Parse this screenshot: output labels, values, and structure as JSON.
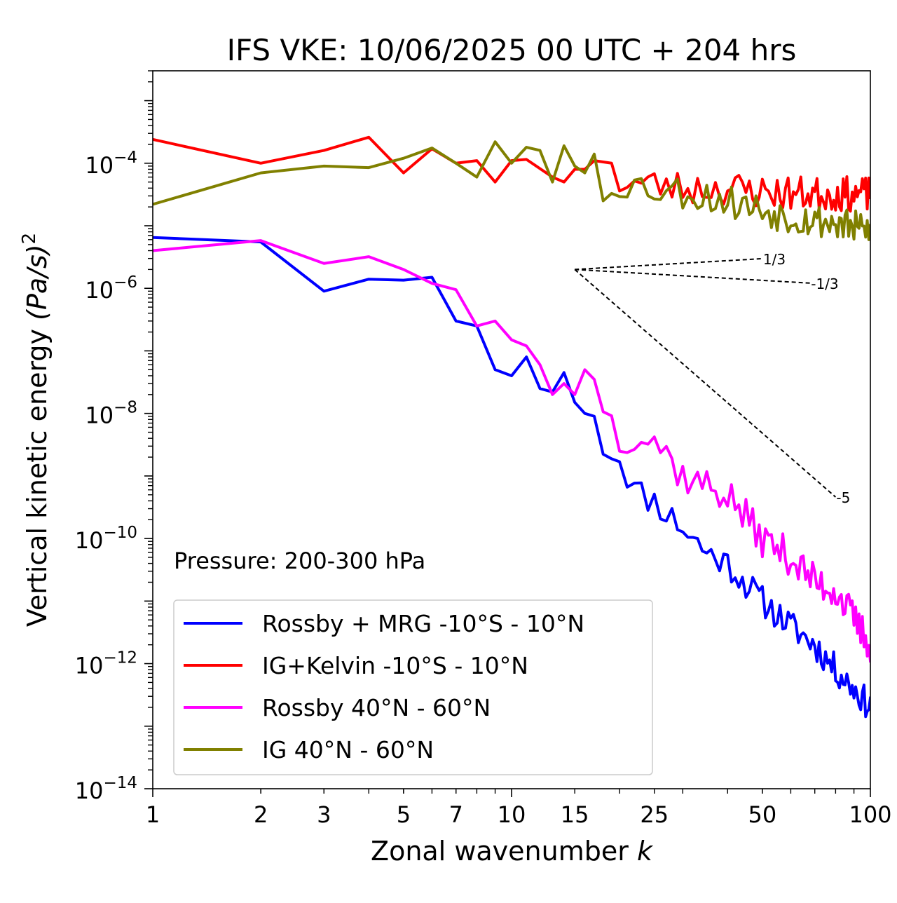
{
  "chart_data": {
    "type": "line",
    "title": "IFS VKE: 10/06/2025 00 UTC + 204 hrs",
    "xlabel": "Zonal wavenumber",
    "xlabel_var": "k",
    "ylabel": "Vertical kinetic energy",
    "ylabel_unit": "(Pa/s)",
    "ylabel_exp": "2",
    "xscale": "log",
    "yscale": "log",
    "xlim": [
      1,
      100
    ],
    "ylim": [
      1e-14,
      0.003
    ],
    "x_ticks": [
      1,
      2,
      3,
      5,
      7,
      10,
      15,
      25,
      50,
      100
    ],
    "x_tick_labels": [
      "1",
      "2",
      "3",
      "5",
      "7",
      "10",
      "15",
      "25",
      "50",
      "100"
    ],
    "y_ticks": [
      1e-14,
      1e-12,
      1e-10,
      1e-08,
      1e-06,
      0.0001
    ],
    "y_tick_labels": [
      {
        "base": "10",
        "exp": "−14"
      },
      {
        "base": "10",
        "exp": "−12"
      },
      {
        "base": "10",
        "exp": "−10"
      },
      {
        "base": "10",
        "exp": "−8"
      },
      {
        "base": "10",
        "exp": "−6"
      },
      {
        "base": "10",
        "exp": "−4"
      }
    ],
    "annotation": "Pressure: 200-300 hPa",
    "legend_position": "lower-left",
    "grid": false,
    "series": [
      {
        "name": "Rossby + MRG -10°S - 10°N",
        "color": "#0000ff",
        "anchors": [
          [
            1,
            6.5e-06
          ],
          [
            2,
            5.5e-06
          ],
          [
            3,
            9e-07
          ],
          [
            4,
            1.4e-06
          ],
          [
            5,
            1.35e-06
          ],
          [
            6,
            1.5e-06
          ],
          [
            7,
            3e-07
          ],
          [
            8,
            2.5e-07
          ],
          [
            9,
            5e-08
          ],
          [
            10,
            4e-08
          ],
          [
            11,
            8e-08
          ],
          [
            12,
            2.5e-08
          ],
          [
            13,
            2.2e-08
          ],
          [
            14,
            4.5e-08
          ],
          [
            15,
            1.5e-08
          ],
          [
            16,
            1e-08
          ],
          [
            17,
            9e-09
          ],
          [
            18,
            3e-09
          ],
          [
            20,
            2e-09
          ],
          [
            22,
            6e-10
          ],
          [
            25,
            4e-10
          ],
          [
            30,
            1.5e-10
          ],
          [
            35,
            6e-11
          ],
          [
            40,
            4e-11
          ],
          [
            50,
            1e-11
          ],
          [
            60,
            4e-12
          ],
          [
            70,
            2e-12
          ],
          [
            80,
            8e-13
          ],
          [
            90,
            4e-13
          ],
          [
            100,
            2e-13
          ]
        ],
        "noise_from": 18,
        "noise": 0.25,
        "seed": 11
      },
      {
        "name": "IG+Kelvin -10°S - 10°N",
        "color": "#ff0000",
        "anchors": [
          [
            1,
            0.00024
          ],
          [
            2,
            0.0001
          ],
          [
            3,
            0.00016
          ],
          [
            4,
            0.00026
          ],
          [
            5,
            7e-05
          ],
          [
            6,
            0.00017
          ],
          [
            7,
            0.0001
          ],
          [
            8,
            0.00011
          ],
          [
            9,
            5e-05
          ],
          [
            10,
            0.00011
          ],
          [
            11,
            0.000115
          ],
          [
            13,
            6e-05
          ],
          [
            14,
            5e-05
          ],
          [
            15,
            8e-05
          ],
          [
            16,
            8e-05
          ],
          [
            17,
            0.00011
          ],
          [
            19,
            0.0001
          ],
          [
            20,
            5e-05
          ],
          [
            25,
            4.5e-05
          ],
          [
            30,
            4e-05
          ],
          [
            40,
            4e-05
          ],
          [
            50,
            3.5e-05
          ],
          [
            60,
            3.3e-05
          ],
          [
            80,
            3.2e-05
          ],
          [
            100,
            3.2e-05
          ]
        ],
        "noise_from": 20,
        "noise": 0.28,
        "seed": 23
      },
      {
        "name": "Rossby 40°N - 60°N",
        "color": "#ff00ff",
        "anchors": [
          [
            1,
            4e-06
          ],
          [
            2,
            5.8e-06
          ],
          [
            3,
            2.5e-06
          ],
          [
            4,
            3.2e-06
          ],
          [
            5,
            2e-06
          ],
          [
            6,
            1.2e-06
          ],
          [
            7,
            9.5e-07
          ],
          [
            8,
            2.5e-07
          ],
          [
            9,
            3e-07
          ],
          [
            10,
            1.5e-07
          ],
          [
            11,
            1.2e-07
          ],
          [
            12,
            6e-08
          ],
          [
            13,
            2e-08
          ],
          [
            14,
            3e-08
          ],
          [
            15,
            2e-08
          ],
          [
            16,
            5e-08
          ],
          [
            17,
            3.5e-08
          ],
          [
            18,
            1.5e-08
          ],
          [
            20,
            4e-09
          ],
          [
            22,
            5e-09
          ],
          [
            25,
            4e-09
          ],
          [
            30,
            1e-09
          ],
          [
            35,
            7e-10
          ],
          [
            40,
            5e-10
          ],
          [
            50,
            1e-10
          ],
          [
            60,
            5e-11
          ],
          [
            70,
            2e-11
          ],
          [
            80,
            1.5e-11
          ],
          [
            90,
            5e-12
          ],
          [
            100,
            2e-12
          ]
        ],
        "noise_from": 18,
        "noise": 0.3,
        "seed": 37
      },
      {
        "name": "IG 40°N - 60°N",
        "color": "#808000",
        "anchors": [
          [
            1,
            2.2e-05
          ],
          [
            2,
            7e-05
          ],
          [
            3,
            9e-05
          ],
          [
            4,
            8.5e-05
          ],
          [
            5,
            0.00012
          ],
          [
            6,
            0.000175
          ],
          [
            7,
            0.0001
          ],
          [
            8,
            6e-05
          ],
          [
            9,
            0.00022
          ],
          [
            10,
            0.0001
          ],
          [
            11,
            0.00018
          ],
          [
            12,
            0.00016
          ],
          [
            13,
            5e-05
          ],
          [
            14,
            0.00019
          ],
          [
            15,
            9e-05
          ],
          [
            16,
            7e-05
          ],
          [
            17,
            0.00014
          ],
          [
            18,
            2.5e-05
          ],
          [
            19,
            4.5e-05
          ],
          [
            20,
            5e-05
          ],
          [
            25,
            4e-05
          ],
          [
            30,
            3.5e-05
          ],
          [
            40,
            2.5e-05
          ],
          [
            50,
            1.8e-05
          ],
          [
            60,
            1.4e-05
          ],
          [
            80,
            1.1e-05
          ],
          [
            100,
            8e-06
          ]
        ],
        "noise_from": 19,
        "noise": 0.28,
        "seed": 53
      }
    ],
    "reference_lines": [
      {
        "label": "1/3",
        "x": [
          15,
          50
        ],
        "y": [
          2e-06,
          2.98e-06
        ]
      },
      {
        "label": "-1/3",
        "x": [
          15,
          68
        ],
        "y": [
          2e-06,
          1.21e-06
        ]
      },
      {
        "label": "-5",
        "x": [
          15,
          80
        ],
        "y": [
          2e-06,
          4.6e-10
        ]
      }
    ]
  }
}
